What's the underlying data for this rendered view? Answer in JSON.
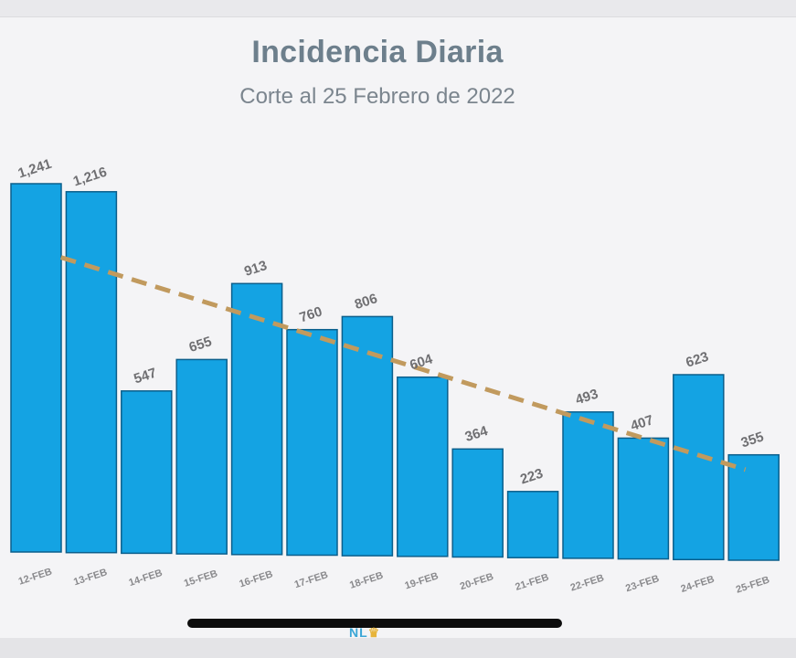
{
  "chart_data": {
    "type": "bar",
    "title": "Incidencia Diaria",
    "subtitle": "Corte al 25 Febrero de 2022",
    "categories": [
      "12-FEB",
      "13-FEB",
      "14-FEB",
      "15-FEB",
      "16-FEB",
      "17-FEB",
      "18-FEB",
      "19-FEB",
      "20-FEB",
      "21-FEB",
      "22-FEB",
      "23-FEB",
      "24-FEB",
      "25-FEB"
    ],
    "values": [
      1241,
      1216,
      547,
      655,
      913,
      760,
      806,
      604,
      364,
      223,
      493,
      407,
      623,
      355
    ],
    "value_labels": [
      "1,241",
      "1,216",
      "547",
      "655",
      "913",
      "760",
      "806",
      "604",
      "364",
      "223",
      "493",
      "407",
      "623",
      "355"
    ],
    "trendline": {
      "style": "dashed",
      "from_category": "12-FEB",
      "to_category": "25-FEB"
    },
    "bar_color": "#14a3e3",
    "bar_edge_color": "#0b5f8c",
    "trend_color": "#c19a5e",
    "grid": false,
    "legend": "none"
  },
  "watermark": {
    "text": "NL",
    "crown": "♛"
  }
}
